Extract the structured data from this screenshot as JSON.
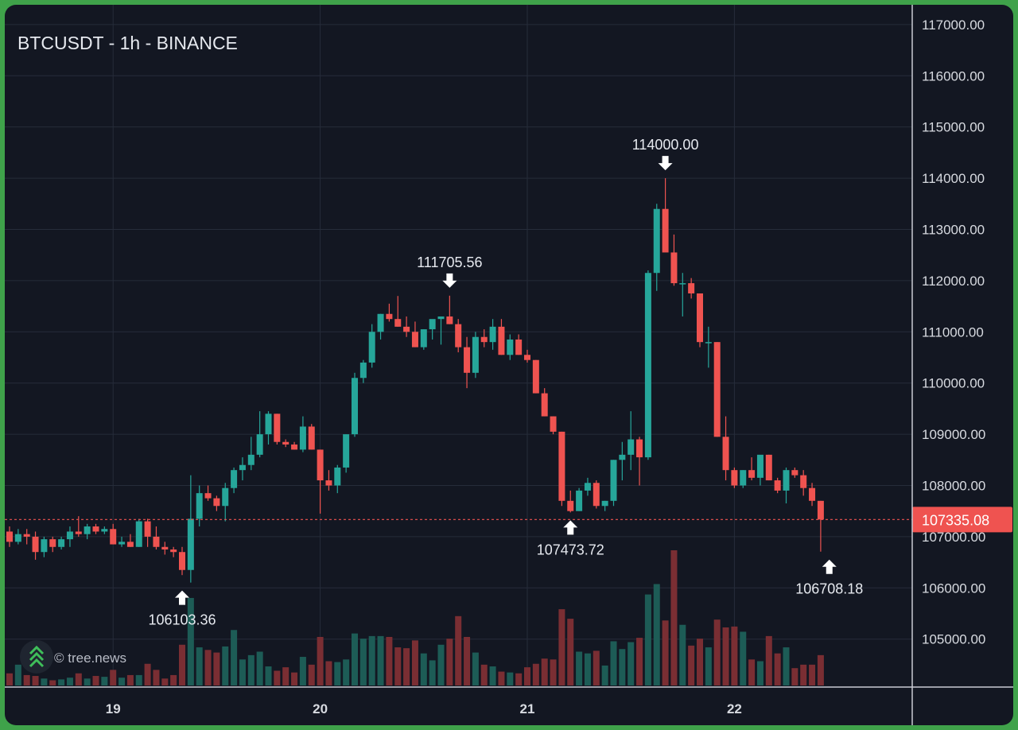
{
  "chart_data": {
    "type": "candlestick",
    "title": "BTCUSDT - 1h - BINANCE",
    "y_range": [
      104250,
      117200
    ],
    "y_ticks": [
      "105000.00",
      "106000.00",
      "107000.00",
      "108000.00",
      "109000.00",
      "110000.00",
      "111000.00",
      "112000.00",
      "113000.00",
      "114000.00",
      "115000.00",
      "116000.00",
      "117000.00"
    ],
    "x_ticks": [
      {
        "label": "19",
        "i": 12
      },
      {
        "label": "20",
        "i": 36
      },
      {
        "label": "21",
        "i": 60
      },
      {
        "label": "22",
        "i": 84
      }
    ],
    "current_price": {
      "value": 107335.08,
      "label": "107335.08"
    },
    "annotations": [
      {
        "label": "106103.36",
        "i": 20,
        "price": 106103.36,
        "dir": "up"
      },
      {
        "label": "111705.56",
        "i": 51,
        "price": 111705.56,
        "dir": "down"
      },
      {
        "label": "107473.72",
        "i": 65,
        "price": 107473.72,
        "dir": "up"
      },
      {
        "label": "114000.00",
        "i": 76,
        "price": 114000.0,
        "dir": "down"
      },
      {
        "label": "106708.18",
        "i": 95,
        "price": 106708.18,
        "dir": "up"
      }
    ],
    "candles": [
      [
        107100,
        107200,
        106800,
        106900,
        140
      ],
      [
        106900,
        107150,
        106850,
        107050,
        240
      ],
      [
        107050,
        107150,
        106850,
        107000,
        120
      ],
      [
        107000,
        107100,
        106550,
        106700,
        110
      ],
      [
        106700,
        107000,
        106600,
        106950,
        80
      ],
      [
        106950,
        107000,
        106700,
        106800,
        60
      ],
      [
        106800,
        107000,
        106750,
        106950,
        70
      ],
      [
        106950,
        107200,
        106800,
        107100,
        90
      ],
      [
        107100,
        107400,
        107000,
        107050,
        140
      ],
      [
        107050,
        107250,
        106950,
        107200,
        80
      ],
      [
        107200,
        107250,
        107050,
        107100,
        110
      ],
      [
        107100,
        107200,
        107050,
        107150,
        100
      ],
      [
        107150,
        107250,
        106850,
        106850,
        180
      ],
      [
        106850,
        107000,
        106800,
        106900,
        90
      ],
      [
        106900,
        107050,
        106800,
        106800,
        120
      ],
      [
        106800,
        107350,
        106800,
        107300,
        120
      ],
      [
        107300,
        107350,
        106800,
        107000,
        250
      ],
      [
        107000,
        107200,
        106750,
        106800,
        180
      ],
      [
        106800,
        106900,
        106650,
        106750,
        80
      ],
      [
        106750,
        106800,
        106600,
        106700,
        120
      ],
      [
        106700,
        106800,
        106250,
        106350,
        470
      ],
      [
        106350,
        108200,
        106103,
        107350,
        1010
      ],
      [
        107350,
        108000,
        107200,
        107850,
        440
      ],
      [
        107850,
        108000,
        107700,
        107750,
        410
      ],
      [
        107750,
        107800,
        107500,
        107600,
        380
      ],
      [
        107600,
        108050,
        107300,
        107950,
        450
      ],
      [
        107950,
        108350,
        107850,
        108300,
        640
      ],
      [
        108300,
        108550,
        108100,
        108400,
        300
      ],
      [
        108400,
        108950,
        108300,
        108600,
        350
      ],
      [
        108600,
        109450,
        108550,
        109000,
        390
      ],
      [
        109000,
        109450,
        108800,
        109400,
        220
      ],
      [
        109400,
        109400,
        108800,
        108850,
        170
      ],
      [
        108850,
        108900,
        108750,
        108800,
        210
      ],
      [
        108800,
        108850,
        108700,
        108700,
        150
      ],
      [
        108700,
        109350,
        108650,
        109150,
        330
      ],
      [
        109150,
        109200,
        108700,
        108700,
        240
      ],
      [
        108700,
        108700,
        107450,
        108100,
        560
      ],
      [
        108100,
        108300,
        107900,
        108000,
        280
      ],
      [
        108000,
        108400,
        107850,
        108350,
        270
      ],
      [
        108350,
        109000,
        108250,
        109000,
        300
      ],
      [
        109000,
        110200,
        108950,
        110100,
        600
      ],
      [
        110100,
        110450,
        110000,
        110400,
        540
      ],
      [
        110400,
        111150,
        110300,
        111000,
        570
      ],
      [
        111000,
        111350,
        110850,
        111350,
        570
      ],
      [
        111350,
        111550,
        111200,
        111250,
        560
      ],
      [
        111250,
        111700,
        111100,
        111100,
        440
      ],
      [
        111100,
        111300,
        110900,
        111000,
        430
      ],
      [
        111000,
        111200,
        110700,
        110700,
        520
      ],
      [
        110700,
        111050,
        110650,
        111050,
        370
      ],
      [
        111050,
        111200,
        110850,
        111250,
        290
      ],
      [
        111250,
        111300,
        110750,
        111300,
        470
      ],
      [
        111300,
        111706,
        111150,
        111150,
        540
      ],
      [
        111150,
        111250,
        110600,
        110700,
        800
      ],
      [
        110700,
        110900,
        109900,
        110200,
        560
      ],
      [
        110200,
        111000,
        110100,
        110900,
        380
      ],
      [
        110900,
        111050,
        110700,
        110800,
        240
      ],
      [
        110800,
        111250,
        110650,
        111100,
        220
      ],
      [
        111100,
        111250,
        110550,
        110550,
        160
      ],
      [
        110550,
        110950,
        110450,
        110850,
        150
      ],
      [
        110850,
        110950,
        110550,
        110550,
        140
      ],
      [
        110550,
        110650,
        110400,
        110450,
        210
      ],
      [
        110450,
        110450,
        109800,
        109800,
        250
      ],
      [
        109800,
        109900,
        109350,
        109350,
        310
      ],
      [
        109350,
        109350,
        109000,
        109050,
        300
      ],
      [
        109050,
        109050,
        107600,
        107700,
        880
      ],
      [
        107700,
        107900,
        107474,
        107500,
        770
      ],
      [
        107500,
        107950,
        107500,
        107900,
        390
      ],
      [
        107900,
        108150,
        107800,
        108050,
        370
      ],
      [
        108050,
        108100,
        107550,
        107600,
        400
      ],
      [
        107600,
        107700,
        107500,
        107700,
        230
      ],
      [
        107700,
        108500,
        107600,
        108500,
        510
      ],
      [
        108500,
        108850,
        108100,
        108600,
        420
      ],
      [
        108600,
        109450,
        108300,
        108900,
        500
      ],
      [
        108900,
        108950,
        108000,
        108550,
        550
      ],
      [
        108550,
        112200,
        108500,
        112150,
        1050
      ],
      [
        112150,
        113500,
        111800,
        113400,
        1170
      ],
      [
        113400,
        114000,
        112600,
        112550,
        750
      ],
      [
        112550,
        112900,
        111900,
        111950,
        1560
      ],
      [
        111950,
        112150,
        111300,
        111950,
        700
      ],
      [
        111950,
        112050,
        111650,
        111750,
        460
      ],
      [
        111750,
        111750,
        110700,
        110800,
        540
      ],
      [
        110800,
        111100,
        110300,
        110800,
        440
      ],
      [
        110800,
        110800,
        108950,
        108950,
        760
      ],
      [
        108950,
        109350,
        108100,
        108300,
        670
      ],
      [
        108300,
        108350,
        107950,
        108000,
        680
      ],
      [
        108000,
        108300,
        107950,
        108300,
        620
      ],
      [
        108300,
        108550,
        108100,
        108150,
        300
      ],
      [
        108150,
        108550,
        108000,
        108600,
        280
      ],
      [
        108600,
        108600,
        108100,
        108100,
        570
      ],
      [
        108100,
        108150,
        107850,
        107900,
        370
      ],
      [
        107900,
        108350,
        107650,
        108300,
        440
      ],
      [
        108300,
        108350,
        108150,
        108200,
        200
      ],
      [
        108200,
        108300,
        107800,
        107950,
        240
      ],
      [
        107950,
        108050,
        107600,
        107700,
        240
      ],
      [
        107700,
        107700,
        106708,
        107335,
        350
      ]
    ]
  },
  "watermark": {
    "text": "© tree.news",
    "icon": "tree-news-chevrons-icon"
  },
  "colors": {
    "up": "#26a69a",
    "down": "#ef5350",
    "grid": "#262c3a",
    "background": "#131722",
    "frame": "#3fa24a"
  }
}
